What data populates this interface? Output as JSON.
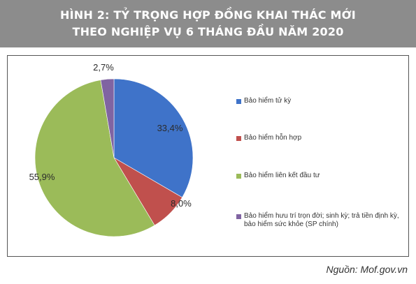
{
  "title_lines": [
    "HÌNH 2: TỶ TRỌNG HỢP ĐỒNG KHAI THÁC MỚI",
    "THEO NGHIỆP VỤ 6 THÁNG ĐẦU NĂM 2020"
  ],
  "source": "Nguồn: Mof.gov.vn",
  "chart_data": {
    "type": "pie",
    "title": "HÌNH 2: TỶ TRỌNG HỢP ĐỒNG KHAI THÁC MỚI THEO NGHIỆP VỤ 6 THÁNG ĐẦU NĂM 2020",
    "legend_position": "right",
    "start_angle_deg": 0,
    "direction": "clockwise",
    "slices": [
      {
        "label": "Bảo hiểm tử kỳ",
        "value": 33.4,
        "value_label": "33,4%",
        "color": "#3f73c9"
      },
      {
        "label": "Bảo hiểm hỗn hợp",
        "value": 8.0,
        "value_label": "8,0%",
        "color": "#c0504d"
      },
      {
        "label": "Bảo hiểm liên kết đầu tư",
        "value": 55.9,
        "value_label": "55,9%",
        "color": "#9bbb59"
      },
      {
        "label": "Bảo hiểm hưu trí trọn đời; sinh kỳ; trả tiền định kỳ, bảo hiểm sức khỏe (SP chính)",
        "value": 2.7,
        "value_label": "2,7%",
        "color": "#8064a2"
      }
    ]
  }
}
